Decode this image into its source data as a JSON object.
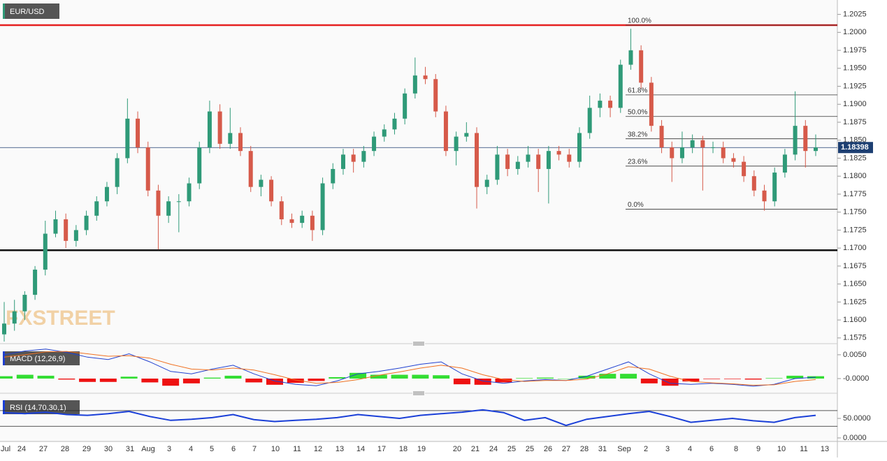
{
  "chart_data": {
    "type": "candlestick",
    "title": "EUR/USD",
    "watermark": "FXSTREET",
    "current_price": 1.18398,
    "ylim": [
      1.1569,
      1.2045
    ],
    "yticks": [
      1.2025,
      {
        "value": 1.2,
        "label": "1.2000"
      },
      1.1975,
      {
        "value": 1.195,
        "label": "1.1950"
      },
      1.1925,
      {
        "value": 1.19,
        "label": "1.1900"
      },
      1.1875,
      {
        "value": 1.185,
        "label": "1.1850"
      },
      1.1825,
      {
        "value": 1.18,
        "label": "1.1800"
      },
      1.1775,
      {
        "value": 1.175,
        "label": "1.1750"
      },
      1.1725,
      {
        "value": 1.17,
        "label": "1.1700"
      },
      1.1675,
      {
        "value": 1.165,
        "label": "1.1650"
      },
      1.1625,
      {
        "value": 1.16,
        "label": "1.1600"
      },
      1.1575
    ],
    "levels": [
      {
        "value": 1.201,
        "color": "#e52020"
      },
      {
        "value": 1.1697,
        "color": "#111111"
      }
    ],
    "fib_levels": [
      {
        "label": "100.0%",
        "value": 1.201
      },
      {
        "label": "61.8%",
        "value": 1.1913
      },
      {
        "label": "50.0%",
        "value": 1.1883
      },
      {
        "label": "38.2%",
        "value": 1.1852
      },
      {
        "label": "23.6%",
        "value": 1.1814
      },
      {
        "label": "0.0%",
        "value": 1.1754
      }
    ],
    "x_labels": [
      "Jul",
      "24",
      "27",
      "28",
      "29",
      "30",
      "31",
      "Aug",
      "3",
      "4",
      "5",
      "6",
      "7",
      "10",
      "11",
      "12",
      "13",
      "14",
      "17",
      "18",
      "19",
      "20",
      "21",
      "24",
      "25",
      "25",
      "26",
      "27",
      "28",
      "31",
      "Sep",
      "2",
      "3",
      "4",
      "6",
      "8",
      "9",
      "10",
      "11",
      "13"
    ],
    "up_color": "#2f9a78",
    "down_color": "#d65a4a",
    "candles": [
      [
        1.158,
        1.1625,
        1.157,
        1.1595
      ],
      [
        1.1595,
        1.1628,
        1.1585,
        1.1612
      ],
      [
        1.1612,
        1.164,
        1.16,
        1.1635
      ],
      [
        1.1635,
        1.1675,
        1.1628,
        1.167
      ],
      [
        1.167,
        1.1738,
        1.1662,
        1.172
      ],
      [
        1.172,
        1.1752,
        1.1715,
        1.174
      ],
      [
        1.174,
        1.1748,
        1.17,
        1.171
      ],
      [
        1.171,
        1.1732,
        1.1702,
        1.1725
      ],
      [
        1.1725,
        1.1752,
        1.1718,
        1.1745
      ],
      [
        1.1745,
        1.1772,
        1.1738,
        1.1765
      ],
      [
        1.1765,
        1.1792,
        1.1758,
        1.1785
      ],
      [
        1.1785,
        1.1832,
        1.1775,
        1.1825
      ],
      [
        1.1825,
        1.1908,
        1.1818,
        1.188
      ],
      [
        1.188,
        1.189,
        1.1832,
        1.184
      ],
      [
        1.184,
        1.1848,
        1.1772,
        1.178
      ],
      [
        1.178,
        1.1788,
        1.1698,
        1.1745
      ],
      [
        1.1745,
        1.1772,
        1.1735,
        1.1765
      ],
      [
        1.1765,
        1.1775,
        1.1722,
        1.1765
      ],
      [
        1.1765,
        1.1798,
        1.1758,
        1.179
      ],
      [
        1.179,
        1.1848,
        1.1782,
        1.184
      ],
      [
        1.184,
        1.1905,
        1.1832,
        1.189
      ],
      [
        1.189,
        1.19,
        1.1838,
        1.1845
      ],
      [
        1.1845,
        1.1895,
        1.1838,
        1.186
      ],
      [
        1.186,
        1.1868,
        1.1828,
        1.1835
      ],
      [
        1.1835,
        1.1842,
        1.1778,
        1.1785
      ],
      [
        1.1785,
        1.1802,
        1.1772,
        1.1795
      ],
      [
        1.1795,
        1.18,
        1.1758,
        1.1765
      ],
      [
        1.1765,
        1.1772,
        1.1732,
        1.174
      ],
      [
        1.174,
        1.1748,
        1.1728,
        1.1735
      ],
      [
        1.1735,
        1.1752,
        1.1728,
        1.1745
      ],
      [
        1.1745,
        1.1752,
        1.171,
        1.1725
      ],
      [
        1.1725,
        1.1798,
        1.1718,
        1.179
      ],
      [
        1.179,
        1.1818,
        1.1782,
        1.181
      ],
      [
        1.181,
        1.1838,
        1.1802,
        1.183
      ],
      [
        1.183,
        1.1838,
        1.1805,
        1.182
      ],
      [
        1.182,
        1.1842,
        1.1812,
        1.1835
      ],
      [
        1.1835,
        1.1862,
        1.1828,
        1.1855
      ],
      [
        1.1855,
        1.1872,
        1.1848,
        1.1865
      ],
      [
        1.1865,
        1.1888,
        1.1858,
        1.188
      ],
      [
        1.188,
        1.1922,
        1.1872,
        1.1915
      ],
      [
        1.1915,
        1.1965,
        1.1908,
        1.194
      ],
      [
        1.194,
        1.1952,
        1.1928,
        1.1935
      ],
      [
        1.1935,
        1.1942,
        1.1882,
        1.189
      ],
      [
        1.189,
        1.1898,
        1.1828,
        1.1835
      ],
      [
        1.1835,
        1.1862,
        1.1815,
        1.1855
      ],
      [
        1.1855,
        1.1875,
        1.1848,
        1.186
      ],
      [
        1.186,
        1.1868,
        1.1755,
        1.1785
      ],
      [
        1.1785,
        1.1802,
        1.1775,
        1.1795
      ],
      [
        1.1795,
        1.1842,
        1.1788,
        1.183
      ],
      [
        1.183,
        1.1838,
        1.18,
        1.181
      ],
      [
        1.181,
        1.1828,
        1.1802,
        1.182
      ],
      [
        1.182,
        1.1842,
        1.1812,
        1.183
      ],
      [
        1.183,
        1.1838,
        1.1778,
        1.181
      ],
      [
        1.181,
        1.1842,
        1.1762,
        1.1835
      ],
      [
        1.1835,
        1.1842,
        1.1822,
        1.183
      ],
      [
        1.183,
        1.1838,
        1.1812,
        1.182
      ],
      [
        1.182,
        1.1868,
        1.1812,
        1.186
      ],
      [
        1.186,
        1.1912,
        1.1852,
        1.1895
      ],
      [
        1.1895,
        1.1915,
        1.1882,
        1.1905
      ],
      [
        1.1905,
        1.1912,
        1.1882,
        1.1895
      ],
      [
        1.1895,
        1.1962,
        1.1888,
        1.1955
      ],
      [
        1.1955,
        1.2005,
        1.1948,
        1.1975
      ],
      [
        1.1975,
        1.1982,
        1.1922,
        1.193
      ],
      [
        1.193,
        1.1938,
        1.1862,
        1.187
      ],
      [
        1.187,
        1.1878,
        1.1832,
        1.184
      ],
      [
        1.184,
        1.1848,
        1.1792,
        1.1825
      ],
      [
        1.1825,
        1.1862,
        1.1818,
        1.184
      ],
      [
        1.184,
        1.1858,
        1.1832,
        1.185
      ],
      [
        1.185,
        1.1856,
        1.178,
        1.184
      ],
      [
        1.184,
        1.1848,
        1.1832,
        1.184
      ],
      [
        1.184,
        1.1848,
        1.1818,
        1.1825
      ],
      [
        1.1825,
        1.1832,
        1.1812,
        1.182
      ],
      [
        1.182,
        1.1828,
        1.1792,
        1.18
      ],
      [
        1.18,
        1.1808,
        1.1772,
        1.178
      ],
      [
        1.178,
        1.1788,
        1.1752,
        1.1765
      ],
      [
        1.1765,
        1.1812,
        1.1758,
        1.1805
      ],
      [
        1.1805,
        1.1838,
        1.1798,
        1.183
      ],
      [
        1.183,
        1.1918,
        1.1822,
        1.187
      ],
      [
        1.187,
        1.1878,
        1.1812,
        1.1835
      ],
      [
        1.1835,
        1.1858,
        1.1828,
        1.184
      ]
    ],
    "macd": {
      "title": "MACD (12,26,9)",
      "ylim": [
        -0.0022,
        0.0066
      ],
      "yticks": [
        {
          "value": 0.005,
          "label": "0.0050"
        },
        {
          "value": 0,
          "label": "-0.0000"
        }
      ],
      "series": [
        {
          "name": "MACD",
          "color": "#2040d0",
          "values": [
            0.005,
            0.0058,
            0.0062,
            0.0055,
            0.0045,
            0.004,
            0.0052,
            0.0035,
            0.0015,
            0.001,
            0.002,
            0.0028,
            0.001,
            -0.0005,
            -0.0012,
            -0.0015,
            -0.0005,
            0.001,
            0.0015,
            0.0022,
            0.003,
            0.0035,
            0.001,
            -0.0005,
            -0.001,
            -0.0005,
            -0.0002,
            -0.0004,
            0.0005,
            0.002,
            0.0035,
            0.001,
            -0.001,
            -0.0012,
            -0.001,
            -0.0012,
            -0.0016,
            -0.0012,
            0.0,
            0.0003
          ]
        },
        {
          "name": "Signal",
          "color": "#f07020",
          "values": [
            0.0045,
            0.005,
            0.0056,
            0.0057,
            0.0052,
            0.0047,
            0.0048,
            0.0043,
            0.003,
            0.002,
            0.0018,
            0.0022,
            0.0018,
            0.0008,
            -0.0003,
            -0.001,
            -0.0008,
            -0.0002,
            0.0007,
            0.0014,
            0.0022,
            0.0028,
            0.0022,
            0.0008,
            -0.0002,
            -0.0006,
            -0.0004,
            -0.0004,
            -0.0001,
            0.001,
            0.0025,
            0.002,
            0.0005,
            -0.0006,
            -0.0009,
            -0.0011,
            -0.0014,
            -0.0013,
            -0.0006,
            -0.0002
          ]
        }
      ],
      "histogram": [
        0.0005,
        0.0008,
        0.0006,
        -0.0002,
        -0.0007,
        -0.0007,
        0.0004,
        -0.0008,
        -0.0015,
        -0.001,
        0.0002,
        0.0006,
        -0.0008,
        -0.0013,
        -0.0009,
        -0.0005,
        0.0003,
        0.0012,
        0.0008,
        0.0008,
        0.0008,
        0.0007,
        -0.0012,
        -0.0013,
        -0.0008,
        0.0001,
        0.0002,
        0.0,
        0.0006,
        0.001,
        0.001,
        -0.001,
        -0.0015,
        -0.0006,
        -0.0001,
        -0.0001,
        -0.0002,
        0.0001,
        0.0006,
        0.0005
      ],
      "hist_up_color": "#33dd33",
      "hist_down_color": "#ee1111"
    },
    "rsi": {
      "title": "RSI (14,70,30,1)",
      "ylim": [
        -9,
        102
      ],
      "yticks": [
        {
          "value": 50,
          "label": "50.0000"
        },
        {
          "value": 0,
          "label": "0.0000"
        }
      ],
      "bounds": [
        70,
        30
      ],
      "color": "#1a3fd8",
      "values": [
        65,
        62,
        66,
        60,
        58,
        62,
        68,
        55,
        45,
        48,
        52,
        60,
        47,
        42,
        45,
        48,
        52,
        60,
        55,
        50,
        58,
        62,
        66,
        72,
        65,
        45,
        52,
        32,
        48,
        55,
        62,
        68,
        55,
        40,
        45,
        50,
        44,
        40,
        52,
        58
      ]
    }
  }
}
